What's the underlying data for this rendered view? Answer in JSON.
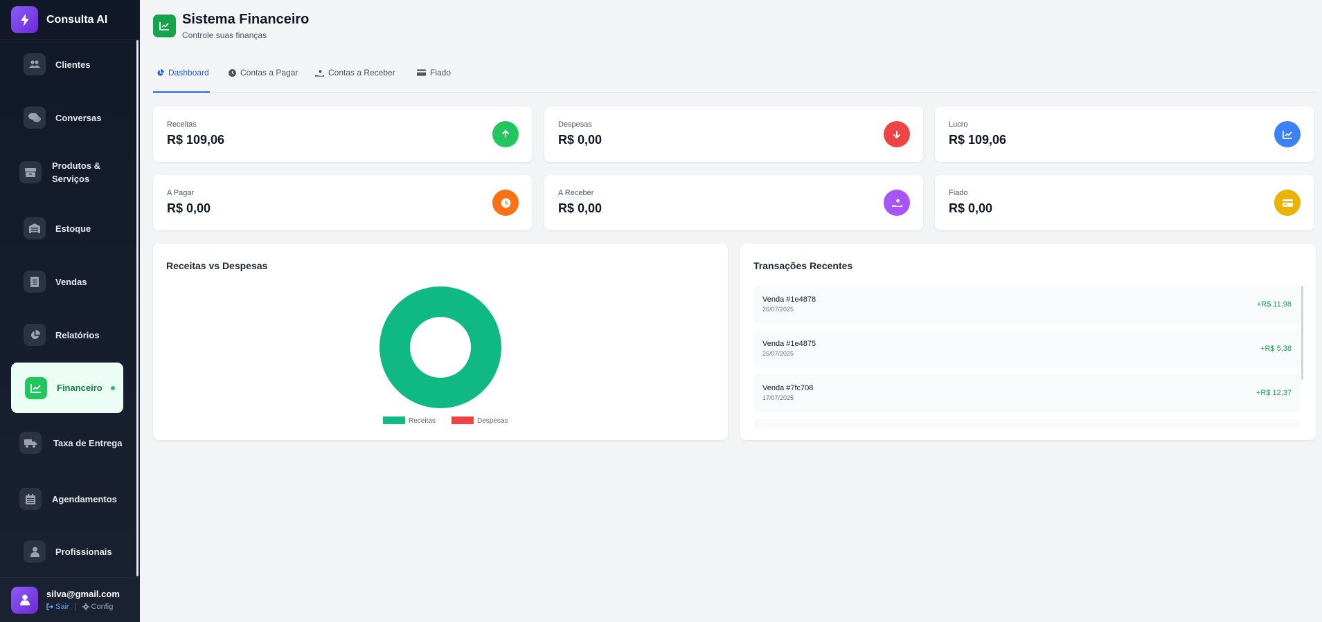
{
  "app": {
    "brand": "Consulta AI"
  },
  "sidebar": {
    "items": [
      {
        "label": "Clientes",
        "icon": "users-icon"
      },
      {
        "label": "Conversas",
        "icon": "chat-icon"
      },
      {
        "label": "Produtos & Serviços",
        "icon": "boxes-icon"
      },
      {
        "label": "Estoque",
        "icon": "warehouse-icon"
      },
      {
        "label": "Vendas",
        "icon": "receipt-icon"
      },
      {
        "label": "Relatórios",
        "icon": "pie-chart-icon"
      },
      {
        "label": "Financeiro",
        "icon": "chart-line-icon",
        "active": true
      },
      {
        "label": "Taxa de Entrega",
        "icon": "truck-icon"
      },
      {
        "label": "Agendamentos",
        "icon": "calendar-icon"
      },
      {
        "label": "Profissionais",
        "icon": "user-tie-icon"
      }
    ]
  },
  "user": {
    "email": "silva@gmail.com",
    "logout_label": "Sair",
    "config_label": "Config"
  },
  "page": {
    "title": "Sistema Financeiro",
    "subtitle": "Controle suas finanças"
  },
  "tabs": [
    {
      "label": "Dashboard",
      "icon": "pie-icon",
      "active": true
    },
    {
      "label": "Contas a Pagar",
      "icon": "clock-icon"
    },
    {
      "label": "Contas a Receber",
      "icon": "hand-coin-icon"
    },
    {
      "label": "Fiado",
      "icon": "credit-card-icon"
    }
  ],
  "stats": [
    {
      "label": "Receitas",
      "value": "R$ 109,06",
      "icon": "arrow-up-icon",
      "color": "#22c55e"
    },
    {
      "label": "Despesas",
      "value": "R$ 0,00",
      "icon": "arrow-down-icon",
      "color": "#ef4444"
    },
    {
      "label": "Lucro",
      "value": "R$ 109,06",
      "icon": "chart-line-icon",
      "color": "#3b82f6"
    },
    {
      "label": "A Pagar",
      "value": "R$ 0,00",
      "icon": "clock-icon",
      "color": "#f97316"
    },
    {
      "label": "A Receber",
      "value": "R$ 0,00",
      "icon": "hand-coin-icon",
      "color": "#a855f7"
    },
    {
      "label": "Fiado",
      "value": "R$ 0,00",
      "icon": "credit-card-icon",
      "color": "#eab308"
    }
  ],
  "chart_panel": {
    "title": "Receitas vs Despesas"
  },
  "chart_data": {
    "type": "pie",
    "title": "",
    "categories": [
      "Receitas",
      "Despesas"
    ],
    "values": [
      109.06,
      0
    ],
    "colors": [
      "#10b981",
      "#ef4444"
    ],
    "donut": true,
    "legend": "bottom"
  },
  "transactions_panel": {
    "title": "Transações Recentes",
    "items": [
      {
        "name": "Venda #1e4878",
        "date": "26/07/2025",
        "amount": "+R$ 11,98"
      },
      {
        "name": "Venda #1e4875",
        "date": "26/07/2025",
        "amount": "+R$ 5,38"
      },
      {
        "name": "Venda #7fc708",
        "date": "17/07/2025",
        "amount": "+R$ 12,37"
      },
      {
        "name": "",
        "date": "",
        "amount": ""
      }
    ]
  }
}
